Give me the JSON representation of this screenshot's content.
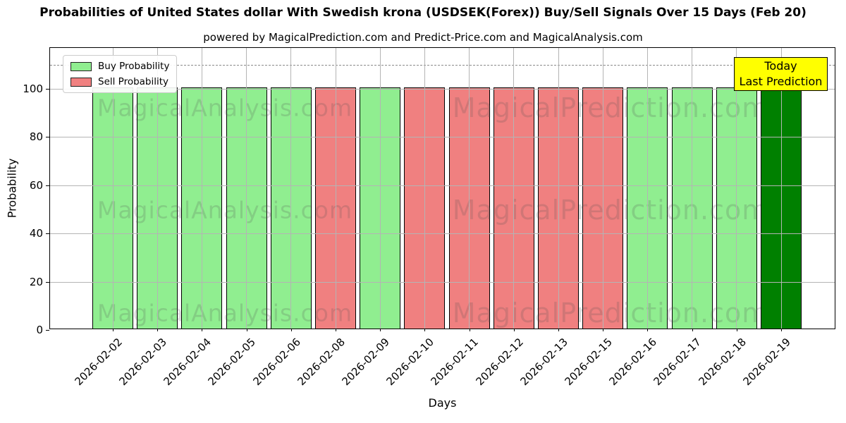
{
  "title": "Probabilities of United States dollar With Swedish krona (USDSEK(Forex)) Buy/Sell Signals Over 15 Days (Feb 20)",
  "subtitle": "powered by MagicalPrediction.com and Predict-Price.com and MagicalAnalysis.com",
  "legend": {
    "buy_label": "Buy Probability",
    "sell_label": "Sell Probability"
  },
  "annotation": {
    "line1": "Today",
    "line2": "Last Prediction"
  },
  "watermarks": {
    "left": "MagicalAnalysis.com",
    "right": "MagicalPrediction.com"
  },
  "colors": {
    "buy": "#90EE90",
    "sell": "#F08080",
    "today_bar": "#008000",
    "annotation_bg": "#FFFF00",
    "grid": "#b4b4b4",
    "dashed_line": "#8a8a8a"
  },
  "chart_data": {
    "type": "bar",
    "title": "Probabilities of United States dollar With Swedish krona (USDSEK(Forex)) Buy/Sell Signals Over 15 Days (Feb 20)",
    "xlabel": "Days",
    "ylabel": "Probability",
    "categories": [
      "2026-02-02",
      "2026-02-03",
      "2026-02-04",
      "2026-02-05",
      "2026-02-06",
      "2026-02-08",
      "2026-02-09",
      "2026-02-10",
      "2026-02-11",
      "2026-02-12",
      "2026-02-13",
      "2026-02-15",
      "2026-02-16",
      "2026-02-17",
      "2026-02-18",
      "2026-02-19"
    ],
    "bar_signals": [
      "buy",
      "buy",
      "buy",
      "buy",
      "buy",
      "sell",
      "buy",
      "sell",
      "sell",
      "sell",
      "sell",
      "sell",
      "buy",
      "buy",
      "buy",
      "today"
    ],
    "bar_values": [
      100,
      100,
      100,
      100,
      100,
      100,
      100,
      100,
      100,
      100,
      100,
      100,
      100,
      100,
      100,
      100
    ],
    "series": [
      {
        "name": "Buy Probability",
        "values": [
          100,
          100,
          100,
          100,
          100,
          0,
          100,
          0,
          0,
          0,
          0,
          0,
          100,
          100,
          100,
          100
        ]
      },
      {
        "name": "Sell Probability",
        "values": [
          0,
          0,
          0,
          0,
          0,
          100,
          0,
          100,
          100,
          100,
          100,
          100,
          0,
          0,
          0,
          0
        ]
      }
    ],
    "yticks": [
      0,
      20,
      40,
      60,
      80,
      100
    ],
    "ylim": [
      0,
      117
    ],
    "dashed_line_y": 110,
    "grid": true,
    "legend_position": "upper left",
    "today_annotation_index": 15
  }
}
